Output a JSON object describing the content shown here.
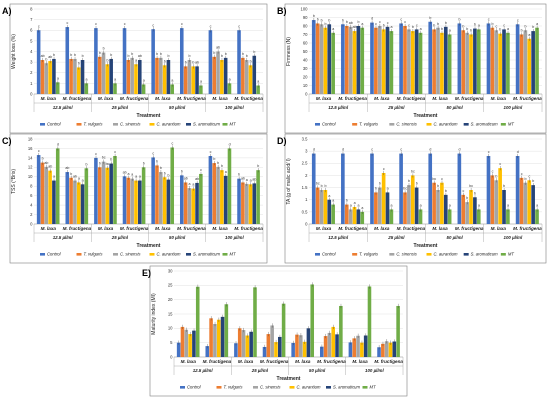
{
  "colors": {
    "series": [
      "#4472c4",
      "#ed7d31",
      "#a5a5a5",
      "#ffc000",
      "#264478",
      "#70ad47"
    ],
    "panel_border": "#7f7f7f",
    "grid": "#d9d9d9"
  },
  "legend": {
    "items": [
      "Control",
      "T. vulgaris",
      "C. sinensis",
      "C. aurantium",
      "S. aromaticum",
      "MT"
    ]
  },
  "chart_data": [
    {
      "panel": "A)",
      "type": "bar",
      "ylabel": "Weight loss (%)",
      "xlabel": "Treatment",
      "ylim": [
        0,
        8
      ],
      "yticks": [
        0,
        1,
        2,
        3,
        4,
        5,
        6,
        7,
        8
      ],
      "grid": true,
      "legend_position": "bottom",
      "concentrations": [
        "12.5 µl/ml",
        "25 µl/ml",
        "50 µl/ml",
        "100 µl/ml"
      ],
      "cultivars": [
        "M. laxa",
        "M. fructigena"
      ],
      "series": [
        {
          "name": "Control",
          "values": [
            6.0,
            6.3,
            6.2,
            6.2,
            6.1,
            6.2,
            6.0,
            6.0
          ]
        },
        {
          "name": "T. vulgaris",
          "values": [
            3.2,
            3.3,
            3.5,
            3.2,
            3.4,
            2.6,
            3.5,
            3.4
          ]
        },
        {
          "name": "C. sinensis",
          "values": [
            2.9,
            3.3,
            3.9,
            3.4,
            3.4,
            3.2,
            4.0,
            3.2
          ]
        },
        {
          "name": "C. aurantium",
          "values": [
            3.1,
            2.5,
            2.8,
            2.8,
            2.7,
            2.6,
            3.2,
            2.7
          ]
        },
        {
          "name": "S. aromaticum",
          "values": [
            3.3,
            3.2,
            3.3,
            3.2,
            3.2,
            2.6,
            3.4,
            3.6
          ]
        },
        {
          "name": "MT",
          "values": [
            1.1,
            1.0,
            1.0,
            0.9,
            0.9,
            0.8,
            1.0,
            0.8
          ]
        }
      ],
      "letters": [
        [
          "c",
          "ab",
          "b",
          "ab",
          "b",
          "a"
        ],
        [
          "c",
          "b",
          "b",
          "b",
          "b",
          "a"
        ],
        [
          "c",
          "b",
          "b",
          "b",
          "b",
          "a"
        ],
        [
          "c",
          "b",
          "b",
          "a",
          "ab",
          "a"
        ],
        [
          "c",
          "b",
          "b",
          "b",
          "b",
          "a"
        ],
        [
          "c",
          "b",
          "b",
          "b",
          "ab",
          "a"
        ],
        [
          "c",
          "b",
          "ab",
          "b",
          "b",
          "a"
        ],
        [
          "c",
          "b",
          "b",
          "b",
          "b",
          "a"
        ]
      ]
    },
    {
      "panel": "B)",
      "type": "bar",
      "ylabel": "Firmness (N)",
      "xlabel": "Treatment",
      "ylim": [
        0,
        100
      ],
      "yticks": [
        0,
        10,
        20,
        30,
        40,
        50,
        60,
        70,
        80,
        90,
        100
      ],
      "grid": true,
      "legend_position": "bottom",
      "concentrations": [
        "12.5 µl/ml",
        "25 µl/ml",
        "50 µl/ml",
        "100 µl/ml"
      ],
      "cultivars": [
        "M. laxa",
        "M. fructigena"
      ],
      "series": [
        {
          "name": "Control",
          "values": [
            87,
            82,
            84,
            83,
            85,
            83,
            83,
            82
          ]
        },
        {
          "name": "T. vulgaris",
          "values": [
            83,
            80,
            78,
            80,
            76,
            75,
            78,
            70
          ]
        },
        {
          "name": "C. sinensis",
          "values": [
            82,
            79,
            80,
            76,
            78,
            72,
            75,
            75
          ]
        },
        {
          "name": "C. aurantium",
          "values": [
            78,
            74,
            76,
            74,
            72,
            70,
            71,
            65
          ]
        },
        {
          "name": "S. aromaticum",
          "values": [
            82,
            80,
            79,
            76,
            79,
            77,
            76,
            74
          ]
        },
        {
          "name": "MT",
          "values": [
            72,
            78,
            74,
            72,
            70,
            76,
            72,
            78
          ]
        }
      ],
      "letters": [
        [
          "b",
          "b",
          "b",
          "b",
          "b",
          "a"
        ],
        [
          "b",
          "b",
          "ab",
          "ab",
          "b",
          "a"
        ],
        [
          "d",
          "c",
          "c",
          "b",
          "c",
          "a"
        ],
        [
          "c",
          "c",
          "c",
          "b",
          "c",
          "a"
        ],
        [
          "b",
          "b",
          "b",
          "b",
          "b",
          "a"
        ],
        [
          "b",
          "b",
          "b",
          "b",
          "b",
          "a"
        ],
        [
          "c",
          "b",
          "c",
          "b",
          "c",
          "a"
        ],
        [
          "c",
          "b",
          "b",
          "a",
          "b",
          "a"
        ]
      ]
    },
    {
      "panel": "C)",
      "type": "bar",
      "ylabel": "TSS (°Brix)",
      "xlabel": "Treatment",
      "ylim": [
        0,
        18
      ],
      "yticks": [
        0,
        2,
        4,
        6,
        8,
        10,
        12,
        14,
        16,
        18
      ],
      "grid": true,
      "legend_position": "bottom",
      "concentrations": [
        "12.5 µl/ml",
        "25 µl/ml",
        "50 µl/ml",
        "100 µl/ml"
      ],
      "cultivars": [
        "M. laxa",
        "M. fructigena"
      ],
      "series": [
        {
          "name": "Control",
          "values": [
            14.6,
            11.0,
            14.0,
            10.1,
            14.1,
            10.3,
            14.4,
            9.6
          ]
        },
        {
          "name": "T. vulgaris",
          "values": [
            13.0,
            9.8,
            12.0,
            9.8,
            12.4,
            8.8,
            12.9,
            8.8
          ]
        },
        {
          "name": "C. sinensis",
          "values": [
            12.1,
            9.2,
            13.2,
            9.6,
            11.0,
            7.6,
            12.1,
            8.5
          ]
        },
        {
          "name": "C. aurantium",
          "values": [
            11.3,
            8.8,
            11.9,
            9.2,
            9.9,
            7.5,
            11.4,
            8.4
          ]
        },
        {
          "name": "S. aromaticum",
          "values": [
            9.2,
            8.4,
            12.8,
            9.2,
            9.4,
            8.7,
            10.2,
            8.6
          ]
        },
        {
          "name": "MT",
          "values": [
            16.0,
            11.8,
            14.4,
            12.0,
            16.2,
            10.6,
            16.0,
            11.4
          ]
        }
      ],
      "letters": [
        [
          "c",
          "b",
          "ab",
          "ab",
          "a",
          "d"
        ],
        [
          "ab",
          "b",
          "ab",
          "a",
          "a",
          "b"
        ],
        [
          "c",
          "b",
          "bc",
          "bc",
          "b",
          "c"
        ],
        [
          "ab",
          "a",
          "a",
          "a",
          "a",
          "b"
        ],
        [
          "c",
          "b",
          "b",
          "b",
          "b",
          "c"
        ],
        [
          "b",
          "ab",
          "a",
          "a",
          "ab",
          "c"
        ],
        [
          "c",
          "b",
          "b",
          "b",
          "a",
          "d"
        ],
        [
          "b",
          "ab",
          "a",
          "a",
          "ab",
          "b"
        ]
      ]
    },
    {
      "panel": "D)",
      "type": "bar",
      "ylabel": "TA (g of malic acid/ l)",
      "xlabel": "Treatment",
      "ylim": [
        0,
        3.5
      ],
      "yticks": [
        0,
        0.5,
        1.0,
        1.5,
        2.0,
        2.5,
        3.0,
        3.5
      ],
      "grid": true,
      "legend_position": "bottom",
      "concentrations": [
        "12.5 µl/ml",
        "25 µl/ml",
        "50 µl/ml",
        "100 µl/ml"
      ],
      "cultivars": [
        "M. laxa",
        "M. fructigena"
      ],
      "series": [
        {
          "name": "Control",
          "values": [
            2.9,
            2.9,
            2.9,
            2.9,
            2.9,
            2.9,
            2.8,
            2.8
          ]
        },
        {
          "name": "T. vulgaris",
          "values": [
            1.5,
            0.8,
            1.3,
            1.3,
            1.7,
            1.2,
            2.0,
            1.9
          ]
        },
        {
          "name": "C. sinensis",
          "values": [
            1.4,
            0.6,
            1.5,
            1.6,
            1.4,
            0.9,
            1.8,
            1.7
          ]
        },
        {
          "name": "C. aurantium",
          "values": [
            1.4,
            0.7,
            2.1,
            2.0,
            1.7,
            1.4,
            2.3,
            1.8
          ]
        },
        {
          "name": "S. aromaticum",
          "values": [
            1.0,
            0.6,
            1.3,
            1.5,
            1.2,
            1.1,
            1.4,
            1.6
          ]
        },
        {
          "name": "MT",
          "values": [
            0.8,
            0.5,
            0.6,
            0.6,
            0.6,
            0.6,
            0.6,
            0.6
          ]
        }
      ],
      "letters": [
        [
          "d",
          "bc",
          "b",
          "b",
          "a",
          "a"
        ],
        [
          "d",
          "b",
          "a",
          "a",
          "a",
          "a"
        ],
        [
          "c",
          "b",
          "b",
          "c",
          "a",
          "a"
        ],
        [
          "c",
          "bc",
          "b",
          "bc",
          "b",
          "a"
        ],
        [
          "d",
          "bc",
          "b",
          "c",
          "b",
          "a"
        ],
        [
          "d",
          "c",
          "b",
          "bc",
          "b",
          "a"
        ],
        [
          "c",
          "c",
          "b",
          "c",
          "b",
          "a"
        ],
        [
          "d",
          "c",
          "b",
          "c",
          "b",
          "a"
        ]
      ]
    },
    {
      "panel": "E)",
      "type": "bar",
      "ylabel": "Maturity index (MI)",
      "xlabel": "Treatment",
      "ylim": [
        0,
        30
      ],
      "yticks": [
        0,
        5,
        10,
        15,
        20,
        25,
        30
      ],
      "grid": true,
      "legend_position": "bottom",
      "concentrations": [
        "12.5 µl/ml",
        "25 µl/ml",
        "50 µl/ml",
        "100 µl/ml"
      ],
      "cultivars": [
        "M. laxa",
        "M. fructigena"
      ],
      "series": [
        {
          "name": "Control",
          "values": [
            5.0,
            3.8,
            4.8,
            3.5,
            4.9,
            3.6,
            5.1,
            3.4
          ]
        },
        {
          "name": "T. vulgaris",
          "values": [
            10.5,
            13.5,
            10.0,
            8.0,
            7.8,
            7.3,
            6.5,
            4.6
          ]
        },
        {
          "name": "C. sinensis",
          "values": [
            9.5,
            11.5,
            9.4,
            11.0,
            7.6,
            8.4,
            7.4,
            5.5
          ]
        },
        {
          "name": "C. aurantium",
          "values": [
            8.0,
            13.0,
            7.5,
            5.2,
            5.3,
            10.5,
            5.0,
            5.0
          ]
        },
        {
          "name": "S. aromaticum",
          "values": [
            9.2,
            14.0,
            8.8,
            7.0,
            10.0,
            7.9,
            7.5,
            5.4
          ]
        },
        {
          "name": "MT",
          "values": [
            24.5,
            18.4,
            24.3,
            18.6,
            25.3,
            17.8,
            24.6,
            17.8
          ]
        }
      ]
    }
  ]
}
